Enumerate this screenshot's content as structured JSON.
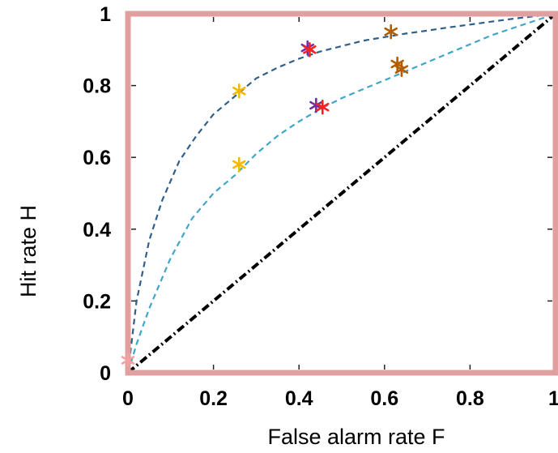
{
  "chart_data": {
    "type": "scatter",
    "title": "",
    "xlabel": "False alarm rate F",
    "ylabel": "Hit rate H",
    "xlim": [
      0,
      1
    ],
    "ylim": [
      0,
      1
    ],
    "x_ticks": [
      "0",
      "0.2",
      "0.4",
      "0.6",
      "0.8",
      "1"
    ],
    "y_ticks": [
      "0",
      "0.2",
      "0.4",
      "0.6",
      "0.8",
      "1"
    ],
    "grid": false,
    "legend": "none",
    "curves": [
      {
        "style": "dashed",
        "color": "#2f5f8a",
        "x": [
          0,
          0.02,
          0.05,
          0.08,
          0.12,
          0.16,
          0.2,
          0.25,
          0.3,
          0.35,
          0.4,
          0.45,
          0.5,
          0.55,
          0.6,
          0.65,
          0.7,
          0.75,
          0.8,
          0.85,
          0.9,
          0.95,
          1.0
        ],
        "y": [
          0,
          0.2,
          0.37,
          0.48,
          0.59,
          0.66,
          0.72,
          0.77,
          0.82,
          0.85,
          0.875,
          0.895,
          0.91,
          0.925,
          0.935,
          0.945,
          0.953,
          0.962,
          0.97,
          0.978,
          0.986,
          0.993,
          1.0
        ]
      },
      {
        "style": "dashed",
        "color": "#3fa6c8",
        "x": [
          0,
          0.02,
          0.05,
          0.1,
          0.15,
          0.2,
          0.25,
          0.3,
          0.35,
          0.4,
          0.45,
          0.5,
          0.55,
          0.6,
          0.65,
          0.7,
          0.75,
          0.8,
          0.85,
          0.9,
          0.95,
          1.0
        ],
        "y": [
          0,
          0.08,
          0.18,
          0.32,
          0.43,
          0.5,
          0.55,
          0.61,
          0.66,
          0.7,
          0.735,
          0.765,
          0.79,
          0.815,
          0.84,
          0.865,
          0.89,
          0.915,
          0.94,
          0.96,
          0.98,
          1.0
        ]
      },
      {
        "style": "dash-dot",
        "color": "#000000",
        "x": [
          0,
          1
        ],
        "y": [
          0,
          1
        ]
      },
      {
        "style": "dashed-thick",
        "color": "#ff1a1a",
        "x": [
          0,
          0,
          1
        ],
        "y": [
          0,
          1,
          1
        ]
      }
    ],
    "points": [
      {
        "x": 0.26,
        "y": 0.785,
        "color": "#f5b800"
      },
      {
        "x": 0.26,
        "y": 0.58,
        "color": "#f5b800"
      },
      {
        "x": 0.42,
        "y": 0.905,
        "color": "#7030a0"
      },
      {
        "x": 0.425,
        "y": 0.9,
        "color": "#ff2020"
      },
      {
        "x": 0.44,
        "y": 0.745,
        "color": "#7030a0"
      },
      {
        "x": 0.455,
        "y": 0.74,
        "color": "#ff2020"
      },
      {
        "x": 0.615,
        "y": 0.95,
        "color": "#b35c00"
      },
      {
        "x": 0.63,
        "y": 0.86,
        "color": "#b35c00"
      },
      {
        "x": 0.64,
        "y": 0.845,
        "color": "#b35c00"
      },
      {
        "x": 0.0,
        "y": 0.035,
        "color": "#f4a0a0"
      }
    ],
    "colors": {
      "frame": "#e0a0a0",
      "upper_curve": "#2f5f8a",
      "lower_curve": "#3fa6c8",
      "diagonal": "#000000",
      "ideal": "#ff1a1a"
    }
  }
}
